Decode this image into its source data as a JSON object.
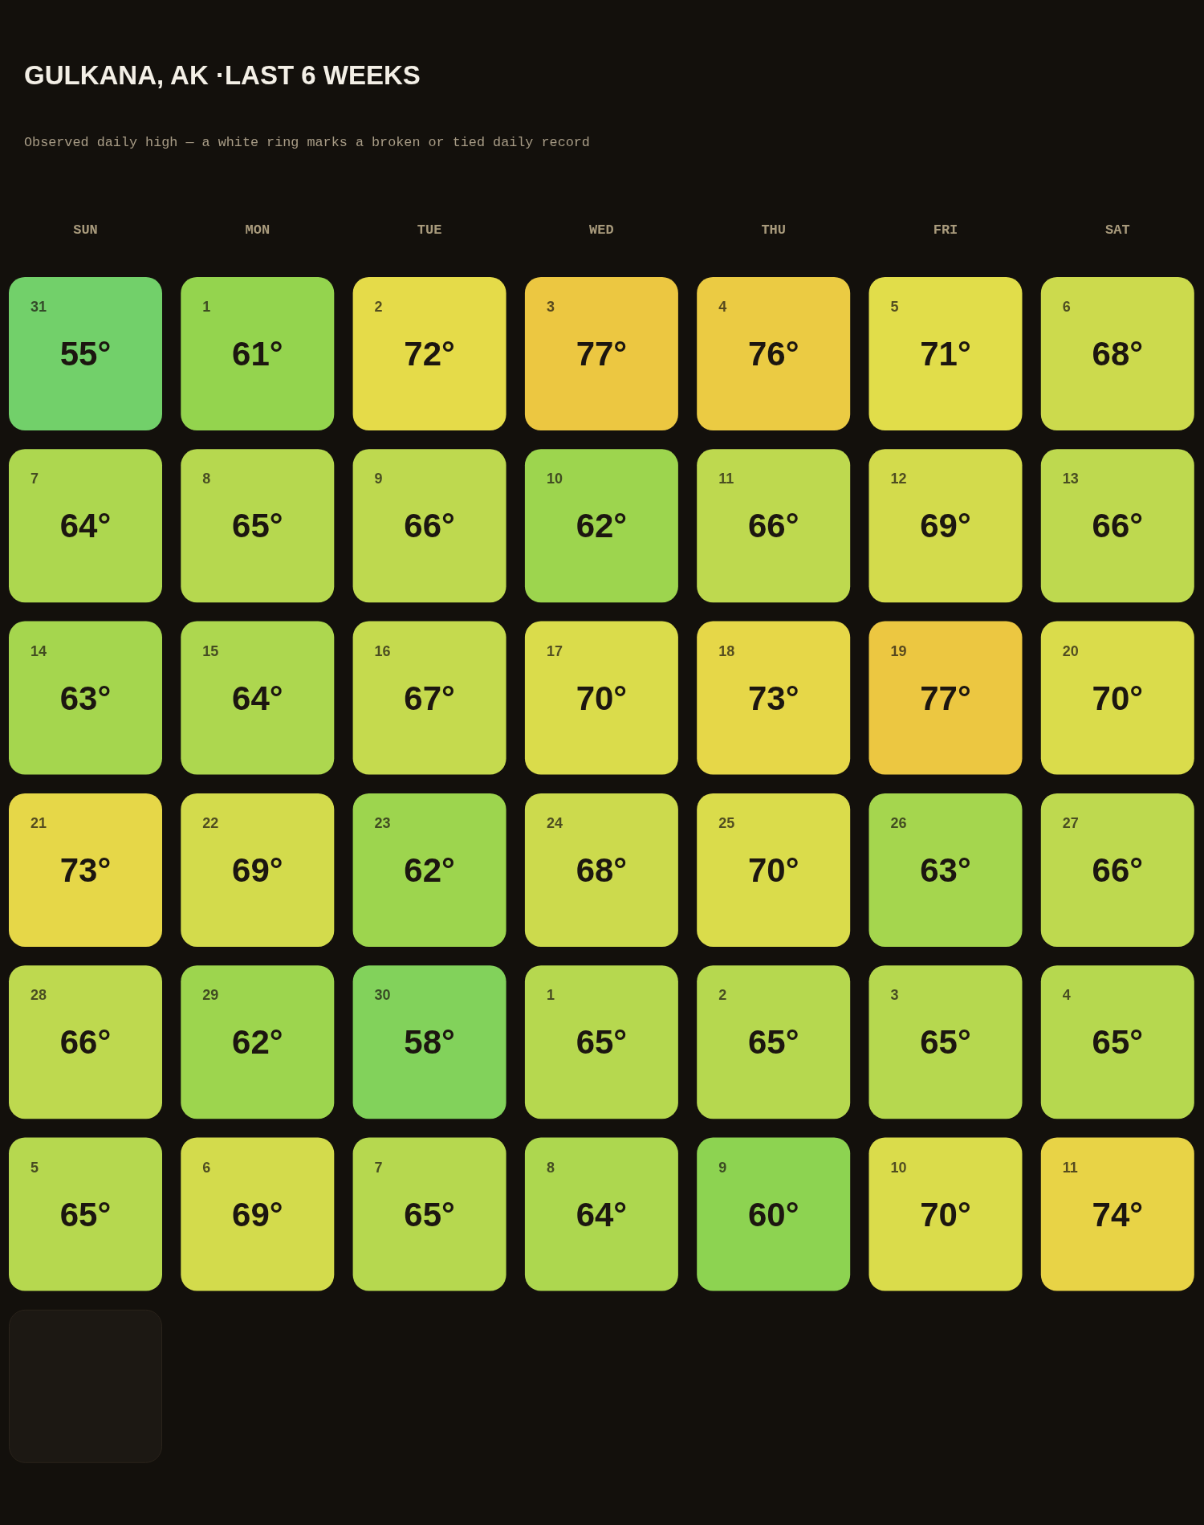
{
  "chart_data": {
    "type": "heatmap",
    "title": "GULKANA, AK ·LAST 6 WEEKS",
    "subtitle": "Observed daily high — a white ring marks a broken or tied daily record",
    "categories": [
      "SUN",
      "MON",
      "TUE",
      "WED",
      "THU",
      "FRI",
      "SAT"
    ],
    "y_categories": [
      null,
      null,
      null,
      null,
      null,
      null
    ],
    "cells": [
      [
        55,
        61,
        72,
        77,
        76,
        71,
        68
      ],
      [
        64,
        65,
        66,
        62,
        66,
        69,
        66
      ],
      [
        63,
        64,
        67,
        70,
        73,
        77,
        70
      ],
      [
        73,
        69,
        62,
        68,
        70,
        63,
        66
      ],
      [
        66,
        62,
        58,
        65,
        65,
        65,
        65
      ],
      [
        65,
        69,
        65,
        64,
        60,
        70,
        74
      ]
    ],
    "cell_labels": [
      [
        "55°",
        "61°",
        "72°",
        "77°",
        "76°",
        "71°",
        "68°"
      ],
      [
        "64°",
        "65°",
        "66°",
        "62°",
        "66°",
        "69°",
        "66°"
      ],
      [
        "63°",
        "64°",
        "67°",
        "70°",
        "73°",
        "77°",
        "70°"
      ],
      [
        "73°",
        "69°",
        "62°",
        "68°",
        "70°",
        "63°",
        "66°"
      ],
      [
        "66°",
        "62°",
        "58°",
        "65°",
        "65°",
        "65°",
        "65°"
      ],
      [
        "65°",
        "69°",
        "65°",
        "64°",
        "60°",
        "70°",
        "74°"
      ]
    ],
    "annotations": [
      "31",
      "1",
      "2",
      "3",
      "4",
      "5",
      "6",
      "7",
      "8",
      "9",
      "10",
      "11",
      "12",
      "13",
      "14",
      "15",
      "16",
      "17",
      "18",
      "19",
      "20",
      "21",
      "22",
      "23",
      "24",
      "25",
      "26",
      "27",
      "28",
      "29",
      "30",
      "1",
      "2",
      "3",
      "4",
      "5",
      "6",
      "7",
      "8",
      "9",
      "10",
      "11"
    ]
  }
}
